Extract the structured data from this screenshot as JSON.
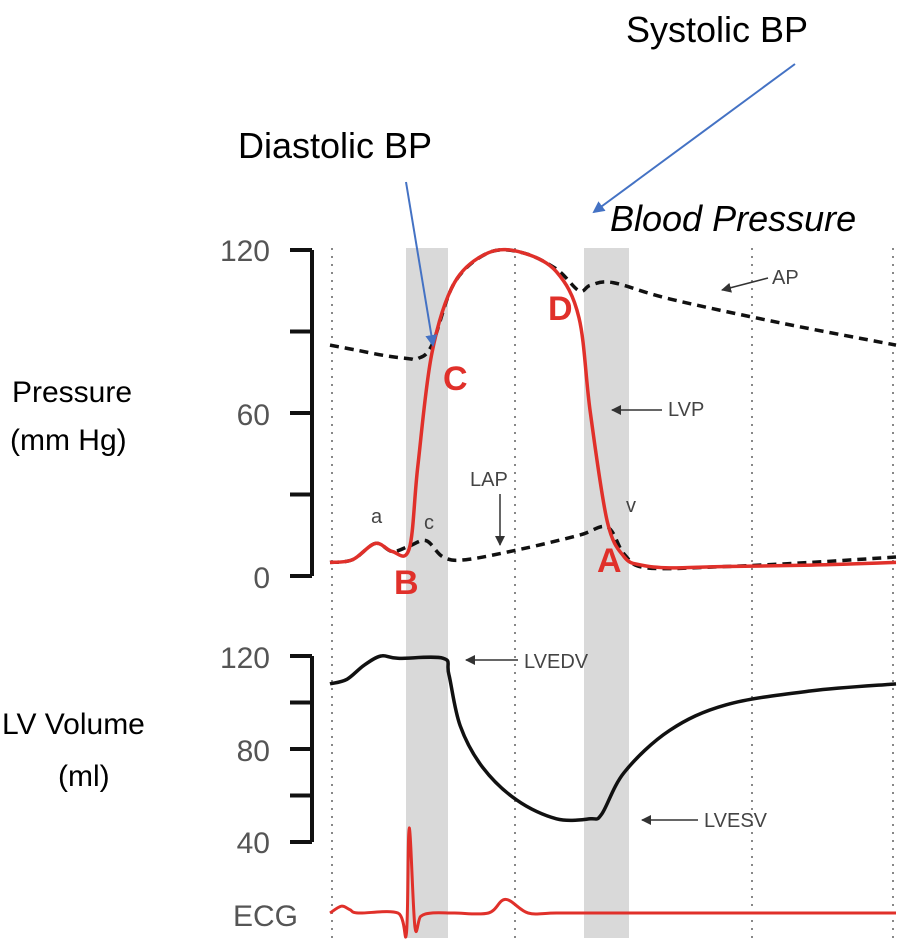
{
  "chart_data": {
    "type": "line",
    "colors": {
      "pressure": "#e0302a",
      "volume": "#111111",
      "dashed": "#111111",
      "shade": "#d9d9d9",
      "arrow": "#4472c4"
    },
    "annotations": {
      "systolic": "Systolic BP",
      "diastolic": "Diastolic BP",
      "blood_pressure": "Blood Pressure"
    },
    "pressure_panel": {
      "ylabel_line1": "Pressure",
      "ylabel_line2": "(mm Hg)",
      "ylim": [
        0,
        120
      ],
      "ticks": [
        {
          "value": 120,
          "label": "120"
        },
        {
          "value": 60,
          "label": "60"
        },
        {
          "value": 0,
          "label": "0"
        }
      ],
      "minor_ticks": [
        90,
        30
      ],
      "series": [
        {
          "name": "LVP",
          "style": "solid",
          "x": [
            0,
            0.04,
            0.08,
            0.11,
            0.14,
            0.155,
            0.18,
            0.22,
            0.28,
            0.34,
            0.4,
            0.44,
            0.46,
            0.49,
            0.52,
            0.55,
            0.6,
            0.7,
            0.85,
            1.0
          ],
          "y": [
            5,
            6,
            12,
            9,
            10,
            40,
            82,
            108,
            119,
            119,
            112,
            95,
            60,
            20,
            7,
            4,
            3,
            3.5,
            4,
            5
          ]
        },
        {
          "name": "AP",
          "style": "dashed",
          "x": [
            0,
            0.05,
            0.1,
            0.14,
            0.155,
            0.18,
            0.22,
            0.28,
            0.34,
            0.4,
            0.44,
            0.46,
            0.5,
            0.6,
            0.8,
            1.0
          ],
          "y": [
            85,
            83,
            81,
            80,
            80,
            85,
            108,
            119,
            119,
            113,
            105,
            107,
            108,
            102,
            93,
            85
          ]
        },
        {
          "name": "LAP",
          "style": "dashed",
          "x": [
            0,
            0.04,
            0.08,
            0.11,
            0.14,
            0.17,
            0.2,
            0.24,
            0.34,
            0.44,
            0.49,
            0.52,
            0.56,
            0.7,
            0.85,
            1.0
          ],
          "y": [
            5,
            6,
            12,
            9,
            11,
            13,
            7,
            6,
            10,
            15,
            18,
            8,
            3,
            3.5,
            5,
            7
          ]
        }
      ],
      "labels": {
        "AP": "AP",
        "LVP": "LVP",
        "LAP": "LAP",
        "a": "a",
        "c": "c",
        "v": "v",
        "A": "A",
        "B": "B",
        "C": "C",
        "D": "D"
      }
    },
    "volume_panel": {
      "ylabel_line1": "LV Volume",
      "ylabel_line2": "(ml)",
      "ylim": [
        40,
        120
      ],
      "ticks": [
        {
          "value": 120,
          "label": "120"
        },
        {
          "value": 80,
          "label": "80"
        },
        {
          "value": 40,
          "label": "40"
        }
      ],
      "minor_ticks": [
        100,
        60
      ],
      "series": [
        {
          "name": "LV Volume",
          "style": "solid",
          "x": [
            0,
            0.03,
            0.06,
            0.09,
            0.12,
            0.2,
            0.21,
            0.23,
            0.27,
            0.33,
            0.4,
            0.46,
            0.48,
            0.52,
            0.6,
            0.7,
            0.85,
            1.0
          ],
          "y": [
            108,
            110,
            116,
            120,
            119,
            119,
            112,
            90,
            72,
            58,
            50,
            50,
            52,
            70,
            88,
            99,
            105,
            108
          ]
        }
      ],
      "labels": {
        "LVEDV": "LVEDV",
        "LVESV": "LVESV"
      }
    },
    "ecg_panel": {
      "label": "ECG",
      "series": [
        {
          "name": "ECG",
          "style": "solid",
          "x": [
            0,
            0.02,
            0.035,
            0.05,
            0.12,
            0.135,
            0.14,
            0.15,
            0.16,
            0.18,
            0.22,
            0.28,
            0.31,
            0.35,
            0.4,
            0.5,
            1.0
          ],
          "y": [
            0,
            2,
            1,
            0,
            0,
            -6,
            25,
            -4,
            -1,
            0,
            0,
            0,
            4,
            0,
            0,
            0,
            0
          ]
        }
      ]
    }
  }
}
